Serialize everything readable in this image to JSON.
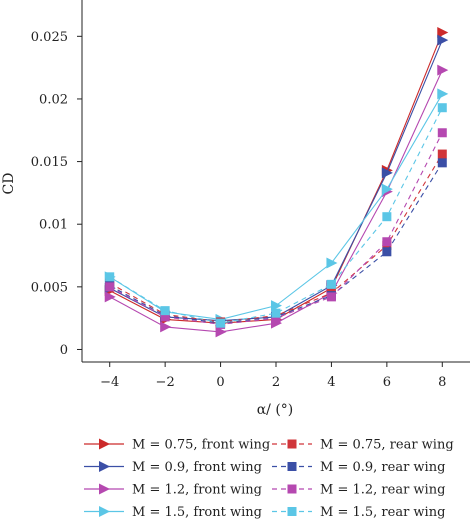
{
  "chart_data": {
    "type": "line",
    "xlabel": "α/ (°)",
    "ylabel": "CD",
    "xlim": [
      -5,
      9
    ],
    "ylim": [
      -0.001,
      0.0275
    ],
    "xticks": [
      -4,
      -2,
      0,
      2,
      4,
      6,
      8
    ],
    "yticks": [
      0,
      0.005,
      0.01,
      0.015,
      0.02,
      0.025
    ],
    "ytick_labels": [
      "0",
      "0.005",
      "0.01",
      "0.015",
      "0.02",
      "0.025"
    ],
    "grid": false,
    "legend_position": "bottom",
    "x": [
      -4,
      -2,
      0,
      2,
      4,
      6,
      8
    ],
    "series": [
      {
        "name": "M = 0.75, front wing",
        "color": "#cc2a2a",
        "style": "solid",
        "marker": "triangle-right",
        "values": [
          0.0047,
          0.0024,
          0.0021,
          0.0024,
          0.0049,
          0.0143,
          0.0253
        ]
      },
      {
        "name": "M = 0.9, front wing",
        "color": "#3b4fa6",
        "style": "solid",
        "marker": "triangle-right",
        "values": [
          0.0049,
          0.0026,
          0.0023,
          0.0026,
          0.0051,
          0.0141,
          0.0247
        ]
      },
      {
        "name": "M = 1.2, front wing",
        "color": "#b548b0",
        "style": "solid",
        "marker": "triangle-right",
        "values": [
          0.0042,
          0.0018,
          0.0014,
          0.0021,
          0.0045,
          0.0126,
          0.0223
        ]
      },
      {
        "name": "M = 1.5, front wing",
        "color": "#5bc6e6",
        "style": "solid",
        "marker": "triangle-right",
        "values": [
          0.0058,
          0.003,
          0.0024,
          0.0035,
          0.0069,
          0.0128,
          0.0204
        ]
      },
      {
        "name": "M = 0.75, rear wing",
        "color": "#d0353a",
        "style": "dashed",
        "marker": "square",
        "values": [
          0.0053,
          0.0028,
          0.0022,
          0.0027,
          0.0045,
          0.0083,
          0.0156
        ]
      },
      {
        "name": "M = 0.9, rear wing",
        "color": "#3b4fa6",
        "style": "dashed",
        "marker": "square",
        "values": [
          0.0051,
          0.0027,
          0.0021,
          0.0026,
          0.0043,
          0.0078,
          0.0149
        ]
      },
      {
        "name": "M = 1.2, rear wing",
        "color": "#b548b0",
        "style": "dashed",
        "marker": "square",
        "values": [
          0.005,
          0.0026,
          0.002,
          0.0025,
          0.0042,
          0.0086,
          0.0173
        ]
      },
      {
        "name": "M = 1.5, rear wing",
        "color": "#5bc6e6",
        "style": "dashed",
        "marker": "square",
        "values": [
          0.0058,
          0.0031,
          0.0021,
          0.0029,
          0.0052,
          0.0106,
          0.0193
        ]
      }
    ]
  }
}
